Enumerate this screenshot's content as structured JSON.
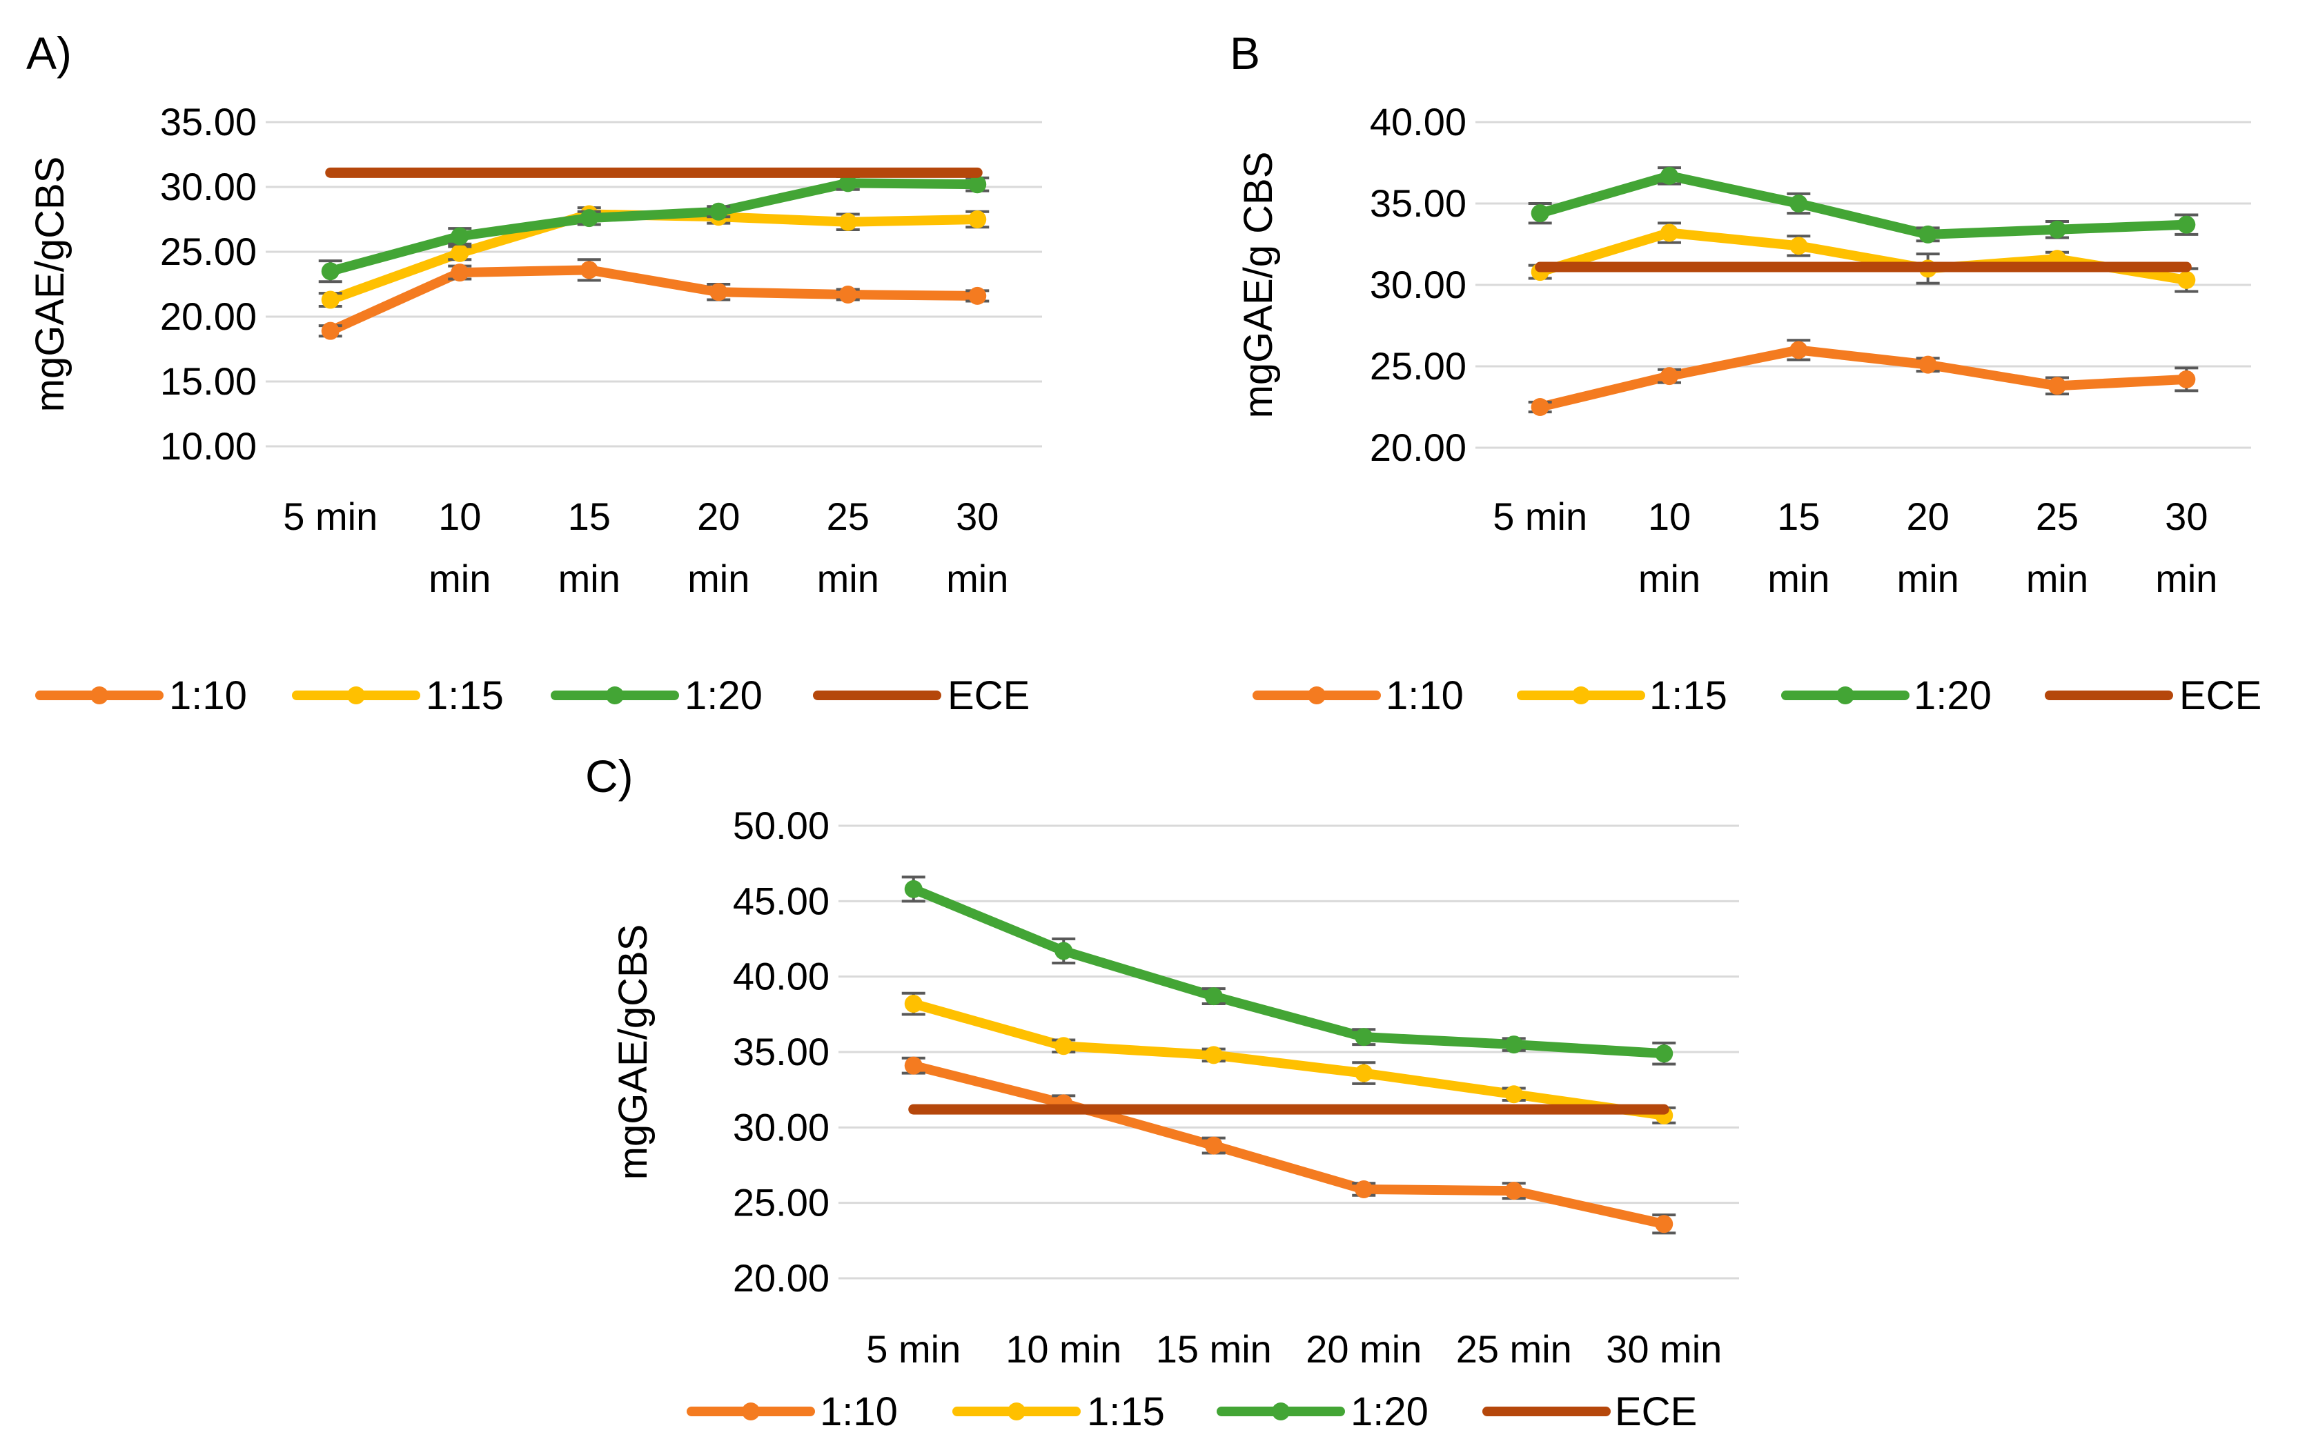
{
  "chart_data": [
    {
      "panel_label": "A)",
      "type": "line",
      "ylabel": "mgGAE/gCBS",
      "ylim": [
        10,
        35
      ],
      "ystep": 5,
      "ytick_labels": [
        "10.00",
        "15.00",
        "20.00",
        "25.00",
        "30.00",
        "35.00"
      ],
      "categories": [
        [
          "5 min"
        ],
        [
          "10",
          "min"
        ],
        [
          "15",
          "min"
        ],
        [
          "20",
          "min"
        ],
        [
          "25",
          "min"
        ],
        [
          "30",
          "min"
        ]
      ],
      "series": [
        {
          "name": "1:10",
          "color": "#f47b20",
          "markers": true,
          "values": [
            18.9,
            23.4,
            23.6,
            21.9,
            21.7,
            21.6
          ],
          "errors": [
            0.4,
            0.5,
            0.8,
            0.6,
            0.4,
            0.4
          ]
        },
        {
          "name": "1:15",
          "color": "#ffc000",
          "markers": true,
          "values": [
            21.3,
            24.9,
            27.9,
            27.7,
            27.3,
            27.5
          ],
          "errors": [
            0.5,
            0.5,
            0.5,
            0.5,
            0.6,
            0.6
          ]
        },
        {
          "name": "1:20",
          "color": "#43a535",
          "markers": true,
          "values": [
            23.5,
            26.2,
            27.6,
            28.1,
            30.3,
            30.2
          ],
          "errors": [
            0.8,
            0.6,
            0.5,
            0.4,
            0.5,
            0.5
          ]
        },
        {
          "name": "ECE",
          "color": "#b5470b",
          "markers": false,
          "values": [
            31.1,
            31.1,
            31.1,
            31.1,
            31.1,
            31.1
          ],
          "errors": null
        }
      ],
      "legend": "bottom"
    },
    {
      "panel_label": "B",
      "type": "line",
      "ylabel": "mgGAE/g CBS",
      "ylim": [
        20,
        40
      ],
      "ystep": 5,
      "ytick_labels": [
        "20.00",
        "25.00",
        "30.00",
        "35.00",
        "40.00"
      ],
      "categories": [
        [
          "5 min"
        ],
        [
          "10",
          "min"
        ],
        [
          "15",
          "min"
        ],
        [
          "20",
          "min"
        ],
        [
          "25",
          "min"
        ],
        [
          "30",
          "min"
        ]
      ],
      "series": [
        {
          "name": "1:10",
          "color": "#f47b20",
          "markers": true,
          "values": [
            22.5,
            24.4,
            26.0,
            25.1,
            23.8,
            24.2
          ],
          "errors": [
            0.3,
            0.4,
            0.6,
            0.4,
            0.5,
            0.7
          ]
        },
        {
          "name": "1:15",
          "color": "#ffc000",
          "markers": true,
          "values": [
            30.8,
            33.2,
            32.4,
            31.0,
            31.6,
            30.3
          ],
          "errors": [
            0.4,
            0.6,
            0.6,
            0.9,
            0.4,
            0.7
          ]
        },
        {
          "name": "1:20",
          "color": "#43a535",
          "markers": true,
          "values": [
            34.4,
            36.7,
            35.0,
            33.1,
            33.4,
            33.7
          ],
          "errors": [
            0.6,
            0.5,
            0.6,
            0.4,
            0.5,
            0.6
          ]
        },
        {
          "name": "ECE",
          "color": "#b5470b",
          "markers": false,
          "values": [
            31.1,
            31.1,
            31.1,
            31.1,
            31.1,
            31.1
          ],
          "errors": null
        }
      ],
      "legend": "bottom"
    },
    {
      "panel_label": "C)",
      "type": "line",
      "ylabel": "mgGAE/gCBS",
      "ylim": [
        20,
        50
      ],
      "ystep": 5,
      "ytick_labels": [
        "20.00",
        "25.00",
        "30.00",
        "35.00",
        "40.00",
        "45.00",
        "50.00"
      ],
      "categories": [
        [
          "5 min"
        ],
        [
          "10 min"
        ],
        [
          "15 min"
        ],
        [
          "20 min"
        ],
        [
          "25 min"
        ],
        [
          "30 min"
        ]
      ],
      "series": [
        {
          "name": "1:10",
          "color": "#f47b20",
          "markers": true,
          "values": [
            34.1,
            31.6,
            28.8,
            25.9,
            25.8,
            23.6
          ],
          "errors": [
            0.5,
            0.5,
            0.5,
            0.4,
            0.5,
            0.6
          ]
        },
        {
          "name": "1:15",
          "color": "#ffc000",
          "markers": true,
          "values": [
            38.2,
            35.4,
            34.8,
            33.6,
            32.2,
            30.8
          ],
          "errors": [
            0.7,
            0.4,
            0.4,
            0.7,
            0.4,
            0.5
          ]
        },
        {
          "name": "1:20",
          "color": "#43a535",
          "markers": true,
          "values": [
            45.8,
            41.7,
            38.7,
            36.0,
            35.5,
            34.9
          ],
          "errors": [
            0.8,
            0.8,
            0.5,
            0.5,
            0.4,
            0.7
          ]
        },
        {
          "name": "ECE",
          "color": "#b5470b",
          "markers": false,
          "values": [
            31.2,
            31.2,
            31.2,
            31.2,
            31.2,
            31.2
          ],
          "errors": null
        }
      ],
      "legend": "bottom"
    }
  ]
}
